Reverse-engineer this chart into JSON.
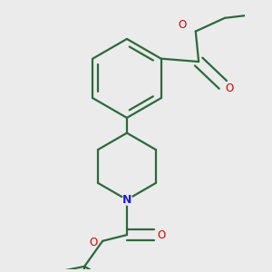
{
  "bg_color": "#ebebeb",
  "bond_color": "#2a6a3a",
  "bond_width": 1.6,
  "dbo": 0.018,
  "N_color": "#1a1aee",
  "O_color": "#dd0000",
  "fig_w": 3.0,
  "fig_h": 3.0,
  "dpi": 100,
  "xlim": [
    -1.8,
    1.8
  ],
  "ylim": [
    -2.6,
    1.8
  ]
}
